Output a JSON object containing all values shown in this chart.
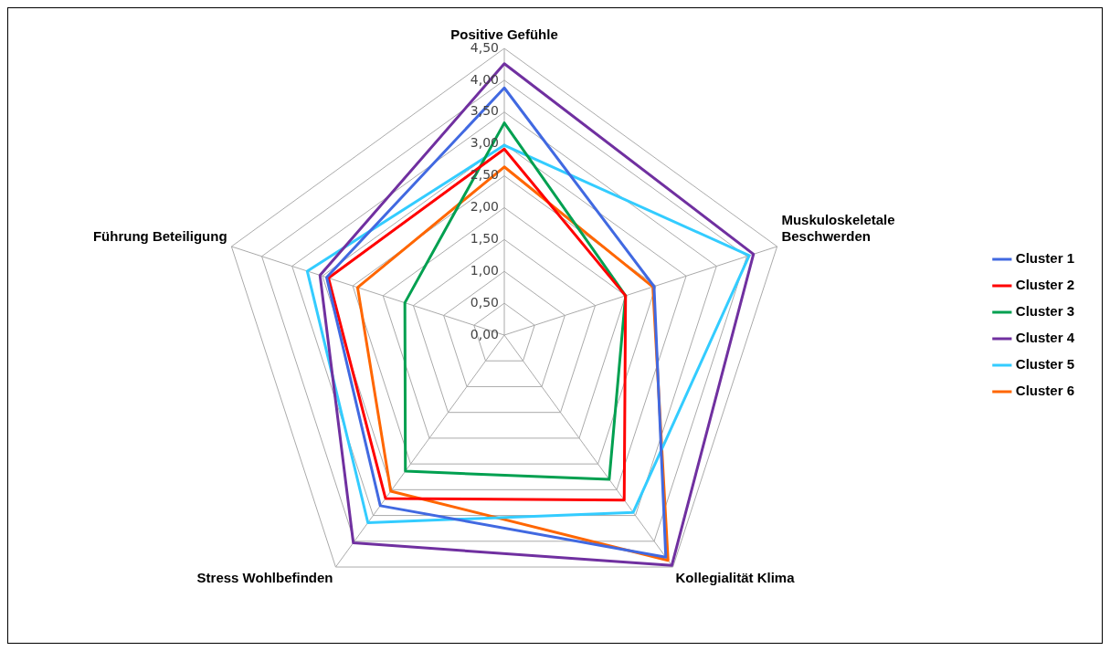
{
  "chart_data": {
    "type": "radar",
    "categories": [
      "Positive Gefühle",
      "Muskuloskeletale Beschwerden",
      "Kollegialität Klima",
      "Stress Wohlbefinden",
      "Führung Beteiligung"
    ],
    "series": [
      {
        "name": "Cluster 1",
        "color": "#4169e1",
        "values": [
          3.88,
          2.47,
          4.31,
          3.31,
          2.93
        ]
      },
      {
        "name": "Cluster 2",
        "color": "#ff0000",
        "values": [
          2.92,
          2.0,
          3.2,
          3.17,
          2.9
        ]
      },
      {
        "name": "Cluster 3",
        "color": "#00a050",
        "values": [
          3.33,
          2.0,
          2.8,
          2.64,
          1.64
        ]
      },
      {
        "name": "Cluster 4",
        "color": "#7030a0",
        "values": [
          4.26,
          4.11,
          4.47,
          4.03,
          3.04
        ]
      },
      {
        "name": "Cluster 5",
        "color": "#33ccff",
        "values": [
          2.98,
          4.04,
          3.44,
          3.64,
          3.25
        ]
      },
      {
        "name": "Cluster 6",
        "color": "#ff6600",
        "values": [
          2.64,
          2.45,
          4.37,
          3.03,
          2.42
        ]
      }
    ],
    "ylim": [
      0,
      4.5
    ],
    "yticks": [
      {
        "value": 0,
        "label": "0,00"
      },
      {
        "value": 0.5,
        "label": "0,50"
      },
      {
        "value": 1,
        "label": "1,00"
      },
      {
        "value": 1.5,
        "label": "1,50"
      },
      {
        "value": 2,
        "label": "2,00"
      },
      {
        "value": 2.5,
        "label": "2,50"
      },
      {
        "value": 3,
        "label": "3,00"
      },
      {
        "value": 3.5,
        "label": "3,50"
      },
      {
        "value": 4,
        "label": "4,00"
      },
      {
        "value": 4.5,
        "label": "4,50"
      }
    ],
    "grid": true,
    "legend": "right",
    "marker": "none",
    "line_style": "solid"
  }
}
